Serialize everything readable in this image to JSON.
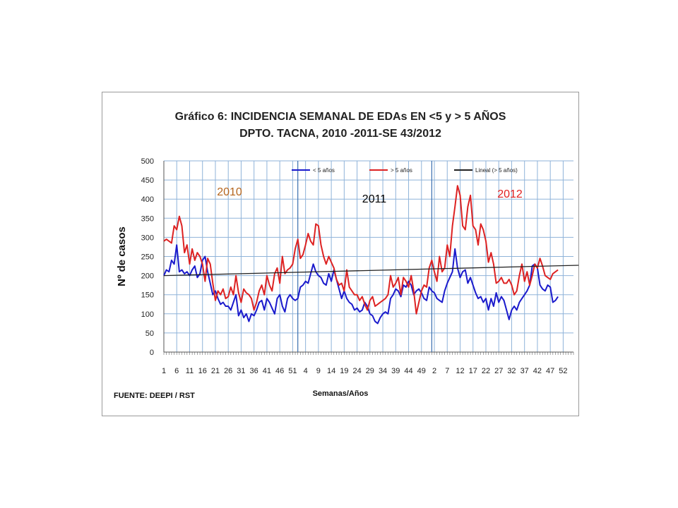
{
  "chart_data": {
    "type": "line",
    "title": "Gráfico 6: INCIDENCIA SEMANAL DE EDAs EN <5 y > 5 AÑOS",
    "subtitle": "DPTO. TACNA, 2010 -2011-SE 43/2012",
    "xlabel": "Semanas/Años",
    "ylabel": "Nº de casos",
    "ylim": [
      0,
      500
    ],
    "yticks": [
      0,
      50,
      100,
      150,
      200,
      250,
      300,
      350,
      400,
      450,
      500
    ],
    "xtick_labels": [
      "1",
      "6",
      "11",
      "16",
      "21",
      "26",
      "31",
      "36",
      "41",
      "46",
      "51",
      "4",
      "9",
      "14",
      "19",
      "24",
      "29",
      "34",
      "39",
      "44",
      "49",
      "2",
      "7",
      "12",
      "17",
      "22",
      "27",
      "32",
      "37",
      "42",
      "47",
      "52"
    ],
    "grid": true,
    "legend_position": "top",
    "source": "FUENTE: DEEPI / RST",
    "year_labels": [
      {
        "text": "2010",
        "color": "#b5651d"
      },
      {
        "text": "2011",
        "color": "#000000"
      },
      {
        "text": "2012",
        "color": "#e02020"
      }
    ],
    "series": [
      {
        "name": "< 5 años",
        "color": "#1a1acc",
        "values": [
          200,
          215,
          210,
          240,
          230,
          280,
          210,
          215,
          205,
          210,
          200,
          215,
          225,
          195,
          205,
          240,
          250,
          210,
          180,
          150,
          160,
          140,
          125,
          130,
          120,
          120,
          110,
          130,
          150,
          95,
          110,
          90,
          100,
          80,
          100,
          95,
          110,
          130,
          135,
          110,
          140,
          130,
          115,
          100,
          140,
          150,
          120,
          105,
          140,
          150,
          140,
          135,
          140,
          170,
          175,
          185,
          180,
          205,
          230,
          210,
          200,
          195,
          180,
          175,
          205,
          185,
          215,
          190,
          165,
          140,
          160,
          140,
          130,
          125,
          110,
          115,
          105,
          110,
          130,
          120,
          100,
          95,
          80,
          75,
          90,
          100,
          105,
          100,
          140,
          150,
          165,
          160,
          145,
          175,
          170,
          185,
          175,
          150,
          160,
          165,
          155,
          140,
          135,
          170,
          160,
          155,
          140,
          135,
          130,
          160,
          180,
          195,
          210,
          270,
          220,
          195,
          210,
          215,
          180,
          195,
          175,
          155,
          140,
          145,
          130,
          140,
          110,
          140,
          120,
          155,
          130,
          145,
          135,
          110,
          85,
          110,
          120,
          110,
          130,
          140,
          150,
          160,
          175,
          225,
          230,
          220,
          175,
          165,
          160,
          175,
          170,
          130,
          135,
          145
        ]
      },
      {
        "name": "> 5 años",
        "color": "#dd2222",
        "values": [
          290,
          295,
          290,
          285,
          330,
          320,
          355,
          330,
          260,
          280,
          230,
          270,
          240,
          260,
          250,
          230,
          185,
          245,
          230,
          180,
          135,
          160,
          150,
          165,
          140,
          145,
          170,
          150,
          200,
          155,
          130,
          165,
          155,
          150,
          140,
          110,
          130,
          160,
          175,
          150,
          200,
          175,
          160,
          205,
          220,
          180,
          250,
          205,
          215,
          220,
          230,
          270,
          295,
          245,
          255,
          280,
          310,
          290,
          280,
          335,
          330,
          280,
          250,
          230,
          250,
          235,
          220,
          190,
          175,
          180,
          160,
          215,
          170,
          160,
          150,
          150,
          135,
          145,
          125,
          110,
          135,
          145,
          120,
          125,
          130,
          135,
          140,
          150,
          200,
          170,
          180,
          195,
          150,
          195,
          185,
          170,
          200,
          160,
          100,
          130,
          160,
          175,
          170,
          220,
          240,
          210,
          185,
          250,
          210,
          220,
          280,
          250,
          330,
          380,
          435,
          410,
          330,
          320,
          380,
          410,
          330,
          320,
          280,
          335,
          320,
          290,
          235,
          260,
          230,
          180,
          185,
          195,
          180,
          180,
          190,
          175,
          150,
          160,
          200,
          230,
          185,
          210,
          175,
          200,
          230,
          220,
          245,
          225,
          200,
          195,
          190,
          205,
          210,
          215
        ]
      },
      {
        "name": "Lineal (> 5 años)",
        "color": "#222222",
        "trend": [
          200,
          227
        ]
      }
    ]
  }
}
